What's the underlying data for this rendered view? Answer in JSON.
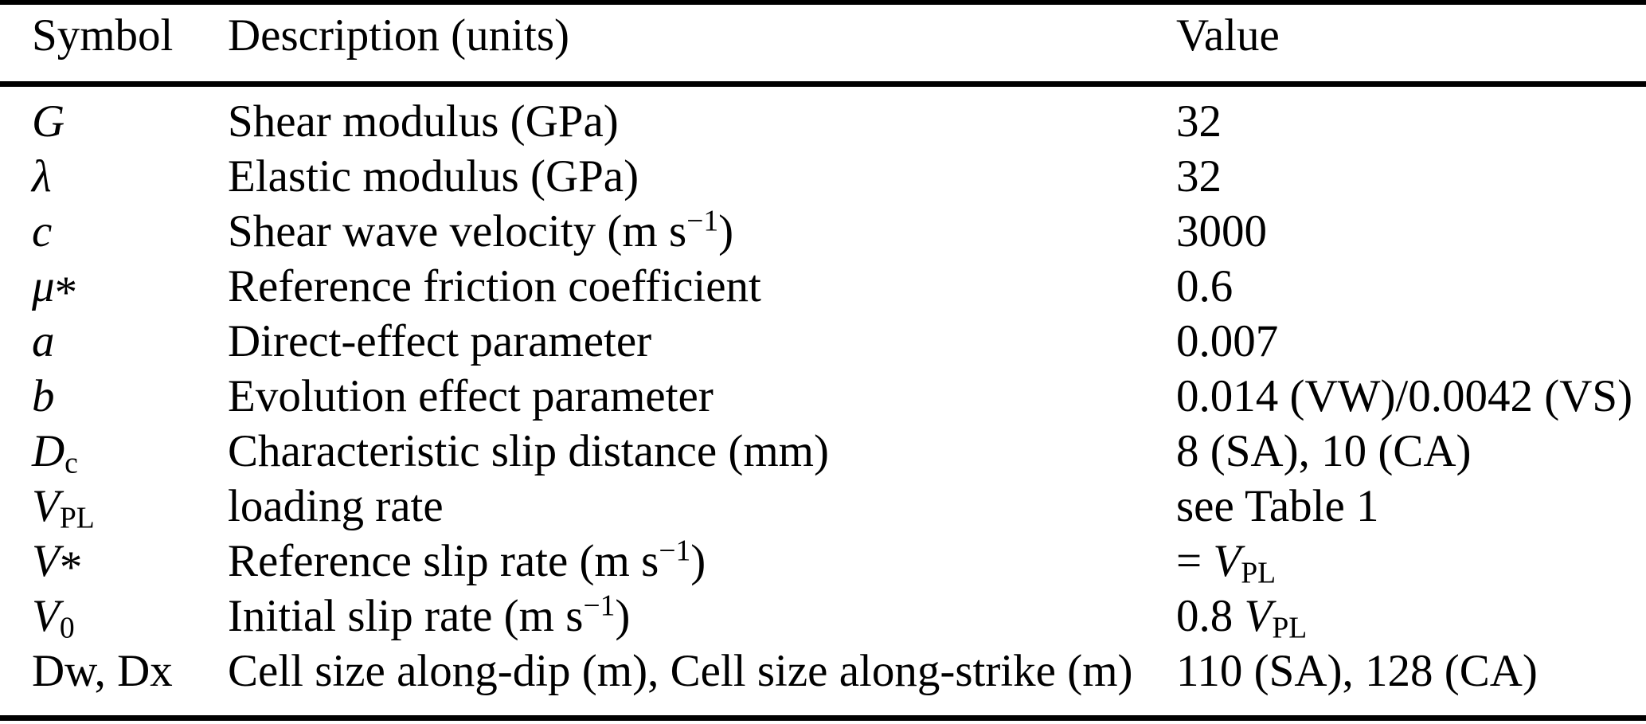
{
  "colors": {
    "background": "#ffffff",
    "text": "#000000",
    "rule": "#000000"
  },
  "table": {
    "header": {
      "symbol": "Symbol",
      "description": "Description (units)",
      "value": "Value"
    },
    "rows": [
      {
        "symbol": [
          {
            "t": "G",
            "it": true
          }
        ],
        "description": [
          {
            "t": "Shear modulus (GPa)"
          }
        ],
        "value": [
          {
            "t": "32"
          }
        ]
      },
      {
        "symbol": [
          {
            "t": "λ",
            "it": true
          }
        ],
        "description": [
          {
            "t": "Elastic modulus (GPa)"
          }
        ],
        "value": [
          {
            "t": "32"
          }
        ]
      },
      {
        "symbol": [
          {
            "t": "c",
            "it": true
          }
        ],
        "description": [
          {
            "t": "Shear wave velocity (m s"
          },
          {
            "t": "−1",
            "sup": true
          },
          {
            "t": ")"
          }
        ],
        "value": [
          {
            "t": "3000"
          }
        ]
      },
      {
        "symbol": [
          {
            "t": "μ",
            "it": true
          },
          {
            "t": "*",
            "ast": true
          }
        ],
        "description": [
          {
            "t": "Reference friction coefficient"
          }
        ],
        "value": [
          {
            "t": "0.6"
          }
        ]
      },
      {
        "symbol": [
          {
            "t": "a",
            "it": true
          }
        ],
        "description": [
          {
            "t": "Direct-effect parameter"
          }
        ],
        "value": [
          {
            "t": "0.007"
          }
        ]
      },
      {
        "symbol": [
          {
            "t": "b",
            "it": true
          }
        ],
        "description": [
          {
            "t": "Evolution effect parameter"
          }
        ],
        "value": [
          {
            "t": "0.014 (VW)/0.0042 (VS)"
          }
        ]
      },
      {
        "symbol": [
          {
            "t": "D",
            "it": true
          },
          {
            "t": "c",
            "sub": true
          }
        ],
        "description": [
          {
            "t": "Characteristic slip distance (mm)"
          }
        ],
        "value": [
          {
            "t": "8 (SA), 10 (CA)"
          }
        ]
      },
      {
        "symbol": [
          {
            "t": "V",
            "it": true
          },
          {
            "t": "PL",
            "sub": true
          }
        ],
        "description": [
          {
            "t": "loading rate"
          }
        ],
        "value": [
          {
            "t": "see Table 1"
          }
        ]
      },
      {
        "symbol": [
          {
            "t": "V",
            "it": true
          },
          {
            "t": "*",
            "ast": true
          }
        ],
        "description": [
          {
            "t": "Reference slip rate (m s"
          },
          {
            "t": "−1",
            "sup": true
          },
          {
            "t": ")"
          }
        ],
        "value": [
          {
            "t": "= "
          },
          {
            "t": "V",
            "it": true
          },
          {
            "t": "PL",
            "sub": true
          }
        ]
      },
      {
        "symbol": [
          {
            "t": "V",
            "it": true
          },
          {
            "t": "0",
            "sub": true
          }
        ],
        "description": [
          {
            "t": "Initial slip rate (m s"
          },
          {
            "t": "−1",
            "sup": true
          },
          {
            "t": ")"
          }
        ],
        "value": [
          {
            "t": "0.8 "
          },
          {
            "t": "V",
            "it": true
          },
          {
            "t": "PL",
            "sub": true
          }
        ]
      },
      {
        "symbol": [
          {
            "t": "Dw, Dx"
          }
        ],
        "description": [
          {
            "t": "Cell size along-dip (m), Cell size along-strike (m)"
          }
        ],
        "value": [
          {
            "t": "110 (SA), 128 (CA)"
          }
        ]
      }
    ]
  },
  "chart_data": {
    "type": "table",
    "title": "",
    "columns": [
      "Symbol",
      "Description (units)",
      "Value"
    ],
    "rows": [
      [
        "G",
        "Shear modulus (GPa)",
        "32"
      ],
      [
        "λ",
        "Elastic modulus (GPa)",
        "32"
      ],
      [
        "c",
        "Shear wave velocity (m s−1)",
        "3000"
      ],
      [
        "μ*",
        "Reference friction coefficient",
        "0.6"
      ],
      [
        "a",
        "Direct-effect parameter",
        "0.007"
      ],
      [
        "b",
        "Evolution effect parameter",
        "0.014 (VW)/0.0042 (VS)"
      ],
      [
        "Dc",
        "Characteristic slip distance (mm)",
        "8 (SA), 10 (CA)"
      ],
      [
        "VPL",
        "loading rate",
        "see Table 1"
      ],
      [
        "V*",
        "Reference slip rate (m s−1)",
        "= VPL"
      ],
      [
        "V0",
        "Initial slip rate (m s−1)",
        "0.8 VPL"
      ],
      [
        "Dw, Dx",
        "Cell size along-dip (m), Cell size along-strike (m)",
        "110 (SA), 128 (CA)"
      ]
    ]
  }
}
